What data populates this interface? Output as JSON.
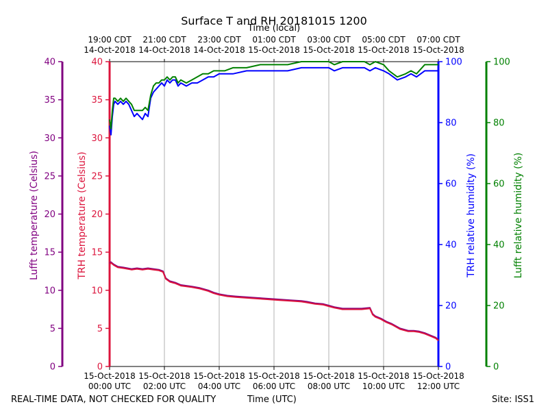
{
  "chart_data": {
    "type": "line",
    "title": "Surface T and RH 20181015 1200",
    "top_xlabel": "Time (local)",
    "xlabel": "Time (UTC)",
    "footer_left": "REAL-TIME DATA, NOT CHECKED FOR QUALITY",
    "footer_right": "Site: ISS1",
    "x_range_hours": [
      0,
      12
    ],
    "top_ticks": [
      {
        "hour": 0,
        "line1": "19:00 CDT",
        "line2": "14-Oct-2018"
      },
      {
        "hour": 2,
        "line1": "21:00 CDT",
        "line2": "14-Oct-2018"
      },
      {
        "hour": 4,
        "line1": "23:00 CDT",
        "line2": "14-Oct-2018"
      },
      {
        "hour": 6,
        "line1": "01:00 CDT",
        "line2": "15-Oct-2018"
      },
      {
        "hour": 8,
        "line1": "03:00 CDT",
        "line2": "15-Oct-2018"
      },
      {
        "hour": 10,
        "line1": "05:00 CDT",
        "line2": "15-Oct-2018"
      },
      {
        "hour": 12,
        "line1": "07:00 CDT",
        "line2": "15-Oct-2018"
      }
    ],
    "bottom_ticks": [
      {
        "hour": 0,
        "line1": "15-Oct-2018",
        "line2": "00:00 UTC"
      },
      {
        "hour": 2,
        "line1": "15-Oct-2018",
        "line2": "02:00 UTC"
      },
      {
        "hour": 4,
        "line1": "15-Oct-2018",
        "line2": "04:00 UTC"
      },
      {
        "hour": 6,
        "line1": "15-Oct-2018",
        "line2": "06:00 UTC"
      },
      {
        "hour": 8,
        "line1": "15-Oct-2018",
        "line2": "08:00 UTC"
      },
      {
        "hour": 10,
        "line1": "15-Oct-2018",
        "line2": "10:00 UTC"
      },
      {
        "hour": 12,
        "line1": "15-Oct-2018",
        "line2": "12:00 UTC"
      }
    ],
    "axes": {
      "lufft_temp": {
        "label": "Lufft temperature (Celsius)",
        "range": [
          0,
          40
        ],
        "ticks": [
          0,
          5,
          10,
          15,
          20,
          25,
          30,
          35,
          40
        ],
        "color": "#800080"
      },
      "trh_temp": {
        "label": "TRH temperature (Celsius)",
        "range": [
          0,
          40
        ],
        "ticks": [
          0,
          5,
          10,
          15,
          20,
          25,
          30,
          35,
          40
        ],
        "color": "#dc143c"
      },
      "trh_rh": {
        "label": "TRH relative humidity (%)",
        "range": [
          0,
          100
        ],
        "ticks": [
          0,
          20,
          40,
          60,
          80,
          100
        ],
        "color": "#0000ff"
      },
      "lufft_rh": {
        "label": "Lufft relative humidity (%)",
        "range": [
          0,
          100
        ],
        "ticks": [
          0,
          20,
          40,
          60,
          80,
          100
        ],
        "color": "#008000"
      }
    },
    "series": [
      {
        "name": "Lufft temperature",
        "axis": "lufft_temp",
        "color": "#800080",
        "x": [
          0,
          0.05,
          0.15,
          0.3,
          0.5,
          0.8,
          1.0,
          1.2,
          1.4,
          1.6,
          1.8,
          1.95,
          2.05,
          2.2,
          2.4,
          2.6,
          3.0,
          3.3,
          3.6,
          3.8,
          4.0,
          4.3,
          4.6,
          5.0,
          5.4,
          5.8,
          6.2,
          6.6,
          7.0,
          7.2,
          7.5,
          7.8,
          8.0,
          8.2,
          8.5,
          8.8,
          9.2,
          9.5,
          9.6,
          9.7,
          9.9,
          10.1,
          10.3,
          10.6,
          10.9,
          11.1,
          11.3,
          11.5,
          11.7,
          11.9,
          12.0
        ],
        "values": [
          13.5,
          13.7,
          13.4,
          13.1,
          13.0,
          12.8,
          12.9,
          12.8,
          12.9,
          12.8,
          12.7,
          12.5,
          11.6,
          11.2,
          11.0,
          10.7,
          10.5,
          10.3,
          10.0,
          9.7,
          9.5,
          9.3,
          9.2,
          9.1,
          9.0,
          8.9,
          8.8,
          8.7,
          8.6,
          8.5,
          8.3,
          8.2,
          8.0,
          7.8,
          7.6,
          7.6,
          7.6,
          7.7,
          6.9,
          6.6,
          6.3,
          5.9,
          5.6,
          5.0,
          4.7,
          4.7,
          4.6,
          4.4,
          4.1,
          3.8,
          3.5
        ]
      },
      {
        "name": "TRH temperature",
        "axis": "trh_temp",
        "color": "#dc143c",
        "x": [
          0,
          0.05,
          0.15,
          0.3,
          0.5,
          0.8,
          1.0,
          1.2,
          1.4,
          1.6,
          1.8,
          1.95,
          2.05,
          2.2,
          2.4,
          2.6,
          3.0,
          3.3,
          3.6,
          3.8,
          4.0,
          4.3,
          4.6,
          5.0,
          5.4,
          5.8,
          6.2,
          6.6,
          7.0,
          7.2,
          7.5,
          7.8,
          8.0,
          8.2,
          8.5,
          8.8,
          9.2,
          9.5,
          9.6,
          9.7,
          9.9,
          10.1,
          10.3,
          10.6,
          10.9,
          11.1,
          11.3,
          11.5,
          11.7,
          11.9,
          12.0
        ],
        "values": [
          13.4,
          13.6,
          13.3,
          13.0,
          12.9,
          12.7,
          12.8,
          12.7,
          12.8,
          12.7,
          12.6,
          12.4,
          11.5,
          11.1,
          10.9,
          10.6,
          10.4,
          10.2,
          9.9,
          9.6,
          9.4,
          9.2,
          9.1,
          9.0,
          8.9,
          8.8,
          8.7,
          8.6,
          8.5,
          8.4,
          8.2,
          8.1,
          7.9,
          7.7,
          7.5,
          7.5,
          7.5,
          7.6,
          6.8,
          6.5,
          6.2,
          5.8,
          5.5,
          4.9,
          4.6,
          4.6,
          4.5,
          4.3,
          4.0,
          3.7,
          3.4
        ]
      },
      {
        "name": "TRH relative humidity",
        "axis": "trh_rh",
        "color": "#0000ff",
        "x": [
          0,
          0.05,
          0.1,
          0.15,
          0.2,
          0.3,
          0.4,
          0.5,
          0.6,
          0.7,
          0.8,
          0.9,
          1.0,
          1.1,
          1.2,
          1.3,
          1.4,
          1.5,
          1.6,
          1.7,
          1.8,
          1.9,
          2.0,
          2.1,
          2.2,
          2.3,
          2.4,
          2.5,
          2.6,
          2.8,
          3.0,
          3.2,
          3.4,
          3.6,
          3.8,
          4.0,
          4.2,
          4.5,
          5.0,
          5.5,
          6.0,
          6.5,
          7.0,
          7.5,
          8.0,
          8.2,
          8.5,
          9.0,
          9.3,
          9.5,
          9.7,
          10.0,
          10.2,
          10.5,
          10.8,
          11.0,
          11.2,
          11.5,
          11.7,
          12.0
        ],
        "values": [
          79,
          76,
          82,
          86,
          87,
          86,
          87,
          86,
          87,
          86,
          84,
          82,
          83,
          82,
          81,
          83,
          82,
          88,
          90,
          91,
          92,
          93,
          92,
          94,
          93,
          94,
          94,
          92,
          93,
          92,
          93,
          93,
          94,
          95,
          95,
          96,
          96,
          96,
          97,
          97,
          97,
          97,
          98,
          98,
          98,
          97,
          98,
          98,
          98,
          97,
          98,
          97,
          96,
          94,
          95,
          96,
          95,
          97,
          97,
          97
        ]
      },
      {
        "name": "Lufft relative humidity",
        "axis": "lufft_rh",
        "color": "#008000",
        "x": [
          0,
          0.05,
          0.1,
          0.15,
          0.2,
          0.3,
          0.4,
          0.5,
          0.6,
          0.7,
          0.8,
          0.9,
          1.0,
          1.1,
          1.2,
          1.3,
          1.4,
          1.5,
          1.6,
          1.7,
          1.8,
          1.9,
          2.0,
          2.1,
          2.2,
          2.3,
          2.4,
          2.5,
          2.6,
          2.8,
          3.0,
          3.2,
          3.4,
          3.6,
          3.8,
          4.0,
          4.2,
          4.5,
          5.0,
          5.5,
          6.0,
          6.5,
          7.0,
          7.5,
          8.0,
          8.2,
          8.5,
          9.0,
          9.3,
          9.5,
          9.7,
          10.0,
          10.2,
          10.5,
          10.8,
          11.0,
          11.2,
          11.5,
          11.7,
          12.0
        ],
        "values": [
          81,
          78,
          84,
          88,
          88,
          87,
          88,
          87,
          88,
          87,
          86,
          84,
          84,
          84,
          84,
          85,
          84,
          89,
          92,
          93,
          93,
          94,
          94,
          95,
          94,
          95,
          95,
          93,
          94,
          93,
          94,
          95,
          96,
          96,
          97,
          97,
          97,
          98,
          98,
          99,
          99,
          99,
          100,
          100,
          100,
          99,
          100,
          100,
          100,
          99,
          100,
          99,
          97,
          95,
          96,
          97,
          96,
          99,
          99,
          99
        ]
      }
    ]
  }
}
